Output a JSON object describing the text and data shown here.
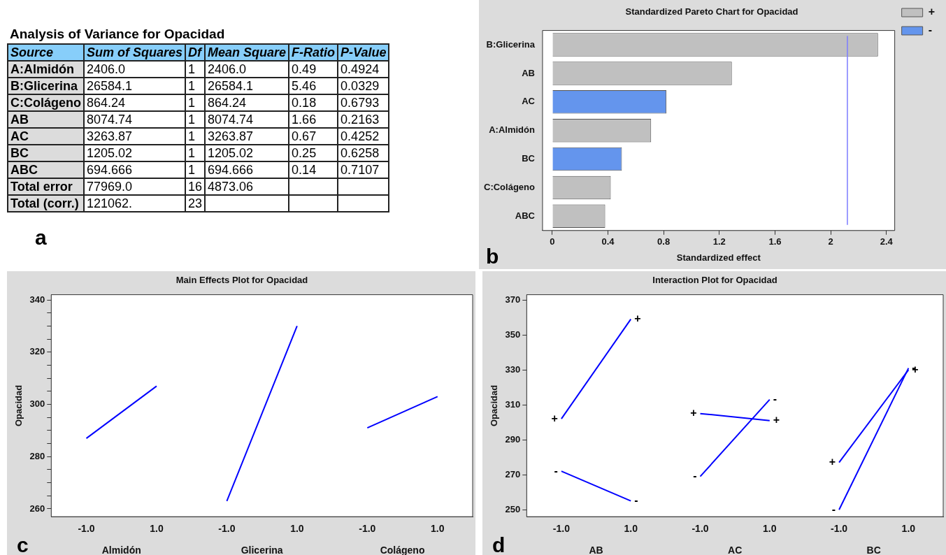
{
  "chart_data": [
    {
      "type": "other",
      "title": "Analysis of Variance for Opacidad",
      "categories": [
        "Source",
        "Sum of Squares",
        "Df",
        "Mean Square",
        "F-Ratio",
        "P-Value"
      ],
      "y_categories": [
        "A:Almidón",
        "B:Glicerina",
        "C:Colágeno",
        "AB",
        "AC",
        "BC",
        "ABC",
        "Total error",
        "Total (corr.)"
      ],
      "cell_labels": [
        [
          "2406.0",
          "1",
          "2406.0",
          "0.49",
          "0.4924"
        ],
        [
          "26584.1",
          "1",
          "26584.1",
          "5.46",
          "0.0329"
        ],
        [
          "864.24",
          "1",
          "864.24",
          "0.18",
          "0.6793"
        ],
        [
          "8074.74",
          "1",
          "8074.74",
          "1.66",
          "0.2163"
        ],
        [
          "3263.87",
          "1",
          "3263.87",
          "0.67",
          "0.4252"
        ],
        [
          "1205.02",
          "1",
          "1205.02",
          "0.25",
          "0.6258"
        ],
        [
          "694.666",
          "1",
          "694.666",
          "0.14",
          "0.7107"
        ],
        [
          "77969.0",
          "16",
          "4873.06",
          null,
          null
        ],
        [
          "121062.",
          "23",
          null,
          null,
          null
        ]
      ],
      "annotations": [
        "a"
      ]
    },
    {
      "type": "bar",
      "orientation": "horizontal",
      "stacked": true,
      "title": "Standardized Pareto Chart for Opacidad",
      "xlabel": "Standardized effect",
      "categories": [
        "B:Glicerina",
        "AB",
        "AC",
        "A:Almidón",
        "BC",
        "C:Colágeno",
        "ABC"
      ],
      "series": [
        {
          "name": "+",
          "color": "#c0c0c0",
          "values": [
            2.34,
            1.29,
            null,
            0.71,
            null,
            0.42,
            0.38
          ]
        },
        {
          "name": "-",
          "color": "#6495ed",
          "values": [
            null,
            null,
            0.82,
            null,
            0.5,
            null,
            null
          ]
        }
      ],
      "xlim": [
        -0.07,
        2.46
      ],
      "xticks": [
        0,
        0.4,
        0.8,
        1.2,
        1.6,
        2,
        2.4
      ],
      "ref_lines": [
        {
          "axis": "x",
          "value": 2.12,
          "color": "#7b7bff"
        }
      ],
      "legend": "top right",
      "annotations": [
        "b"
      ]
    },
    {
      "type": "line",
      "title": "Main Effects Plot for Opacidad",
      "ylabel": "Opacidad",
      "categories": [
        "-1.0",
        "1.0",
        "-1.0",
        "1.0",
        "-1.0",
        "1.0"
      ],
      "series": [
        {
          "color": "#0000ff",
          "values": [
            287,
            307,
            null,
            null,
            null,
            null
          ]
        },
        {
          "color": "#0000ff",
          "values": [
            null,
            null,
            263,
            330,
            null,
            null
          ]
        },
        {
          "color": "#0000ff",
          "values": [
            null,
            null,
            null,
            null,
            291,
            303
          ]
        }
      ],
      "ylim": [
        257,
        342
      ],
      "yticks": [
        260,
        {
          "value": 265,
          "label": null
        },
        {
          "value": 270,
          "label": null
        },
        {
          "value": 275,
          "label": null
        },
        280,
        {
          "value": 285,
          "label": null
        },
        {
          "value": 290,
          "label": null
        },
        {
          "value": 295,
          "label": null
        },
        300,
        {
          "value": 305,
          "label": null
        },
        {
          "value": 310,
          "label": null
        },
        {
          "value": 315,
          "label": null
        },
        320,
        {
          "value": 325,
          "label": null
        },
        {
          "value": 330,
          "label": null
        },
        {
          "value": 335,
          "label": null
        },
        340
      ],
      "marker": "none",
      "line_style": "solid",
      "annotations": [
        "c",
        "Almidón",
        "Glicerina",
        "Colágeno"
      ]
    },
    {
      "type": "line",
      "title": "Interaction Plot for Opacidad",
      "ylabel": "Opacidad",
      "categories": [
        "-1.0",
        "1.0",
        "-1.0",
        "1.0",
        "-1.0",
        "1.0"
      ],
      "series": [
        {
          "name": "+",
          "color": "#0000ff",
          "values": [
            302,
            359,
            null,
            null,
            null,
            null
          ]
        },
        {
          "name": "-",
          "color": "#0000ff",
          "values": [
            272,
            255,
            null,
            null,
            null,
            null
          ]
        },
        {
          "name": "+",
          "color": "#0000ff",
          "values": [
            null,
            null,
            305,
            301,
            null,
            null
          ]
        },
        {
          "name": "-",
          "color": "#0000ff",
          "values": [
            null,
            null,
            269,
            313,
            null,
            null
          ]
        },
        {
          "name": "+",
          "color": "#0000ff",
          "values": [
            null,
            null,
            null,
            null,
            277,
            330
          ]
        },
        {
          "name": "-",
          "color": "#0000ff",
          "values": [
            null,
            null,
            null,
            null,
            250,
            331
          ]
        }
      ],
      "ylim": [
        246,
        373
      ],
      "yticks": [
        250,
        270,
        290,
        310,
        330,
        350,
        370
      ],
      "marker": "none",
      "line_style": "solid",
      "annotations": [
        "d",
        "AB",
        "AC",
        "BC"
      ]
    }
  ]
}
